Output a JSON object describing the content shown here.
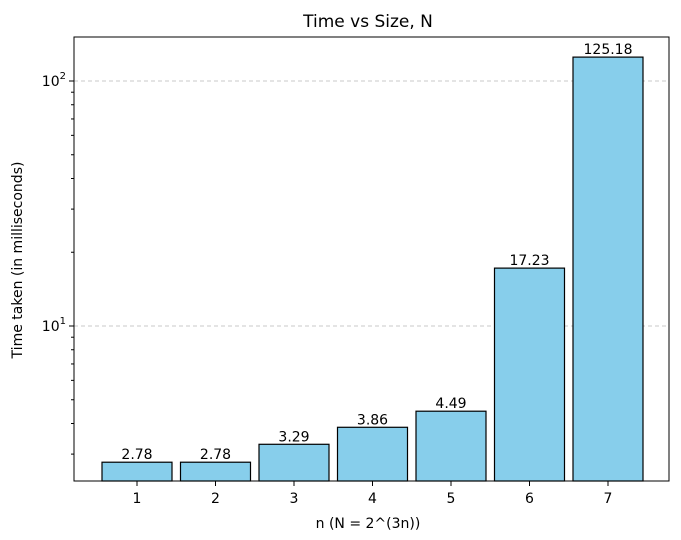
{
  "chart_data": {
    "type": "bar",
    "title": "Time vs Size, N",
    "xlabel": "n (N = 2^(3n))",
    "ylabel": "Time taken (in milliseconds)",
    "y_scale": "log",
    "ylim": [
      2.45,
      160
    ],
    "y_major_ticks": [
      {
        "value": 10,
        "base": "10",
        "exp": "1"
      },
      {
        "value": 100,
        "base": "10",
        "exp": "2"
      }
    ],
    "grid": {
      "axis": "y",
      "style": "dashed"
    },
    "categories": [
      "1",
      "2",
      "3",
      "4",
      "5",
      "6",
      "7"
    ],
    "values": [
      2.78,
      2.78,
      3.29,
      3.86,
      4.49,
      17.23,
      125.18
    ],
    "data_labels": [
      "2.78",
      "2.78",
      "3.29",
      "3.86",
      "4.49",
      "17.23",
      "125.18"
    ],
    "colors": {
      "bar_fill": "#87ceeb",
      "bar_edge": "#000000",
      "grid": "#c8c8c8"
    }
  }
}
